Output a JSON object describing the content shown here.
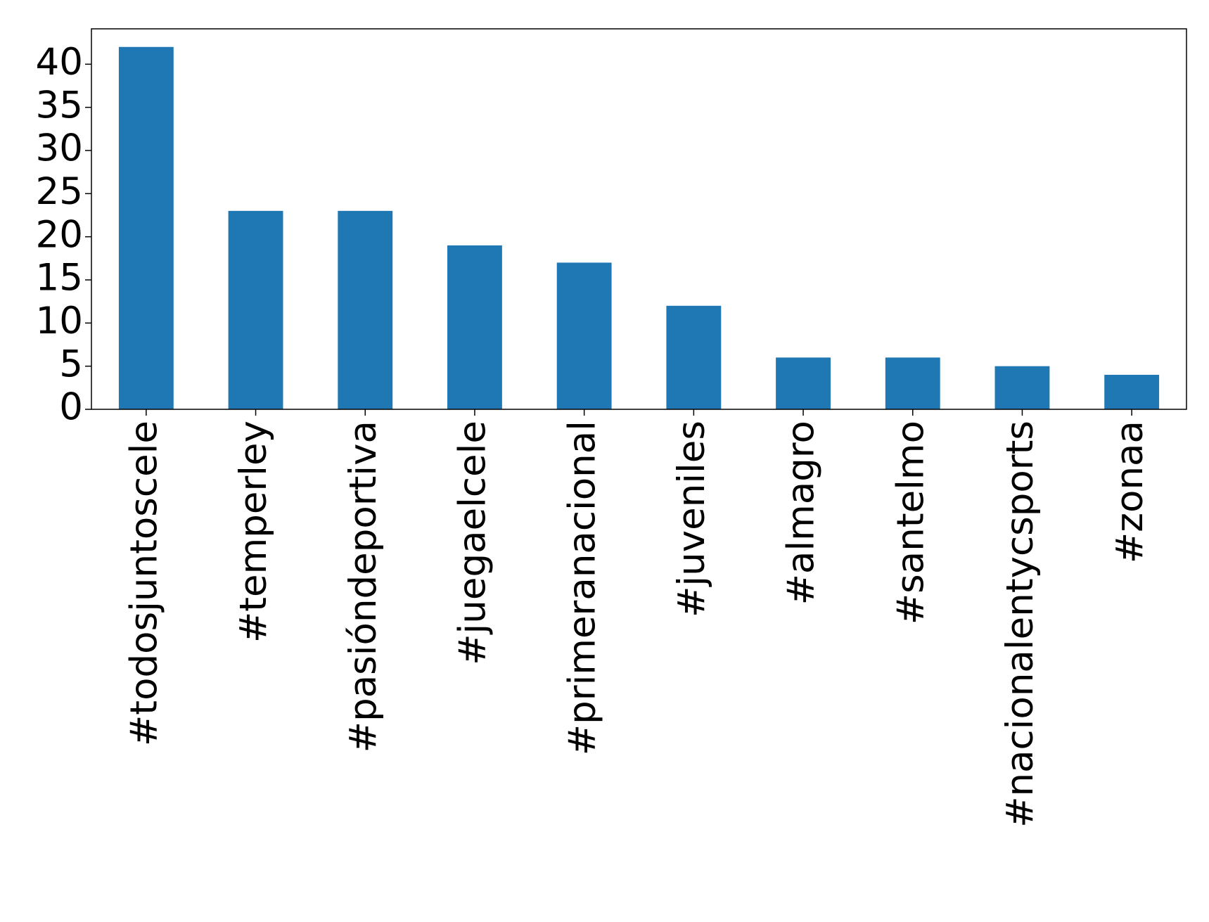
{
  "chart_data": {
    "type": "bar",
    "categories": [
      "#todosjuntoscele",
      "#temperley",
      "#pasióndeportiva",
      "#juegaelcele",
      "#primeranacional",
      "#juveniles",
      "#almagro",
      "#santelmo",
      "#nacionalentycsports",
      "#zonaa"
    ],
    "values": [
      42,
      23,
      23,
      19,
      17,
      12,
      6,
      6,
      5,
      4
    ],
    "color": "#1f77b4",
    "ylim": [
      0,
      44.1
    ],
    "yticks": [
      0,
      5,
      10,
      15,
      20,
      25,
      30,
      35,
      40
    ],
    "grid": false
  }
}
